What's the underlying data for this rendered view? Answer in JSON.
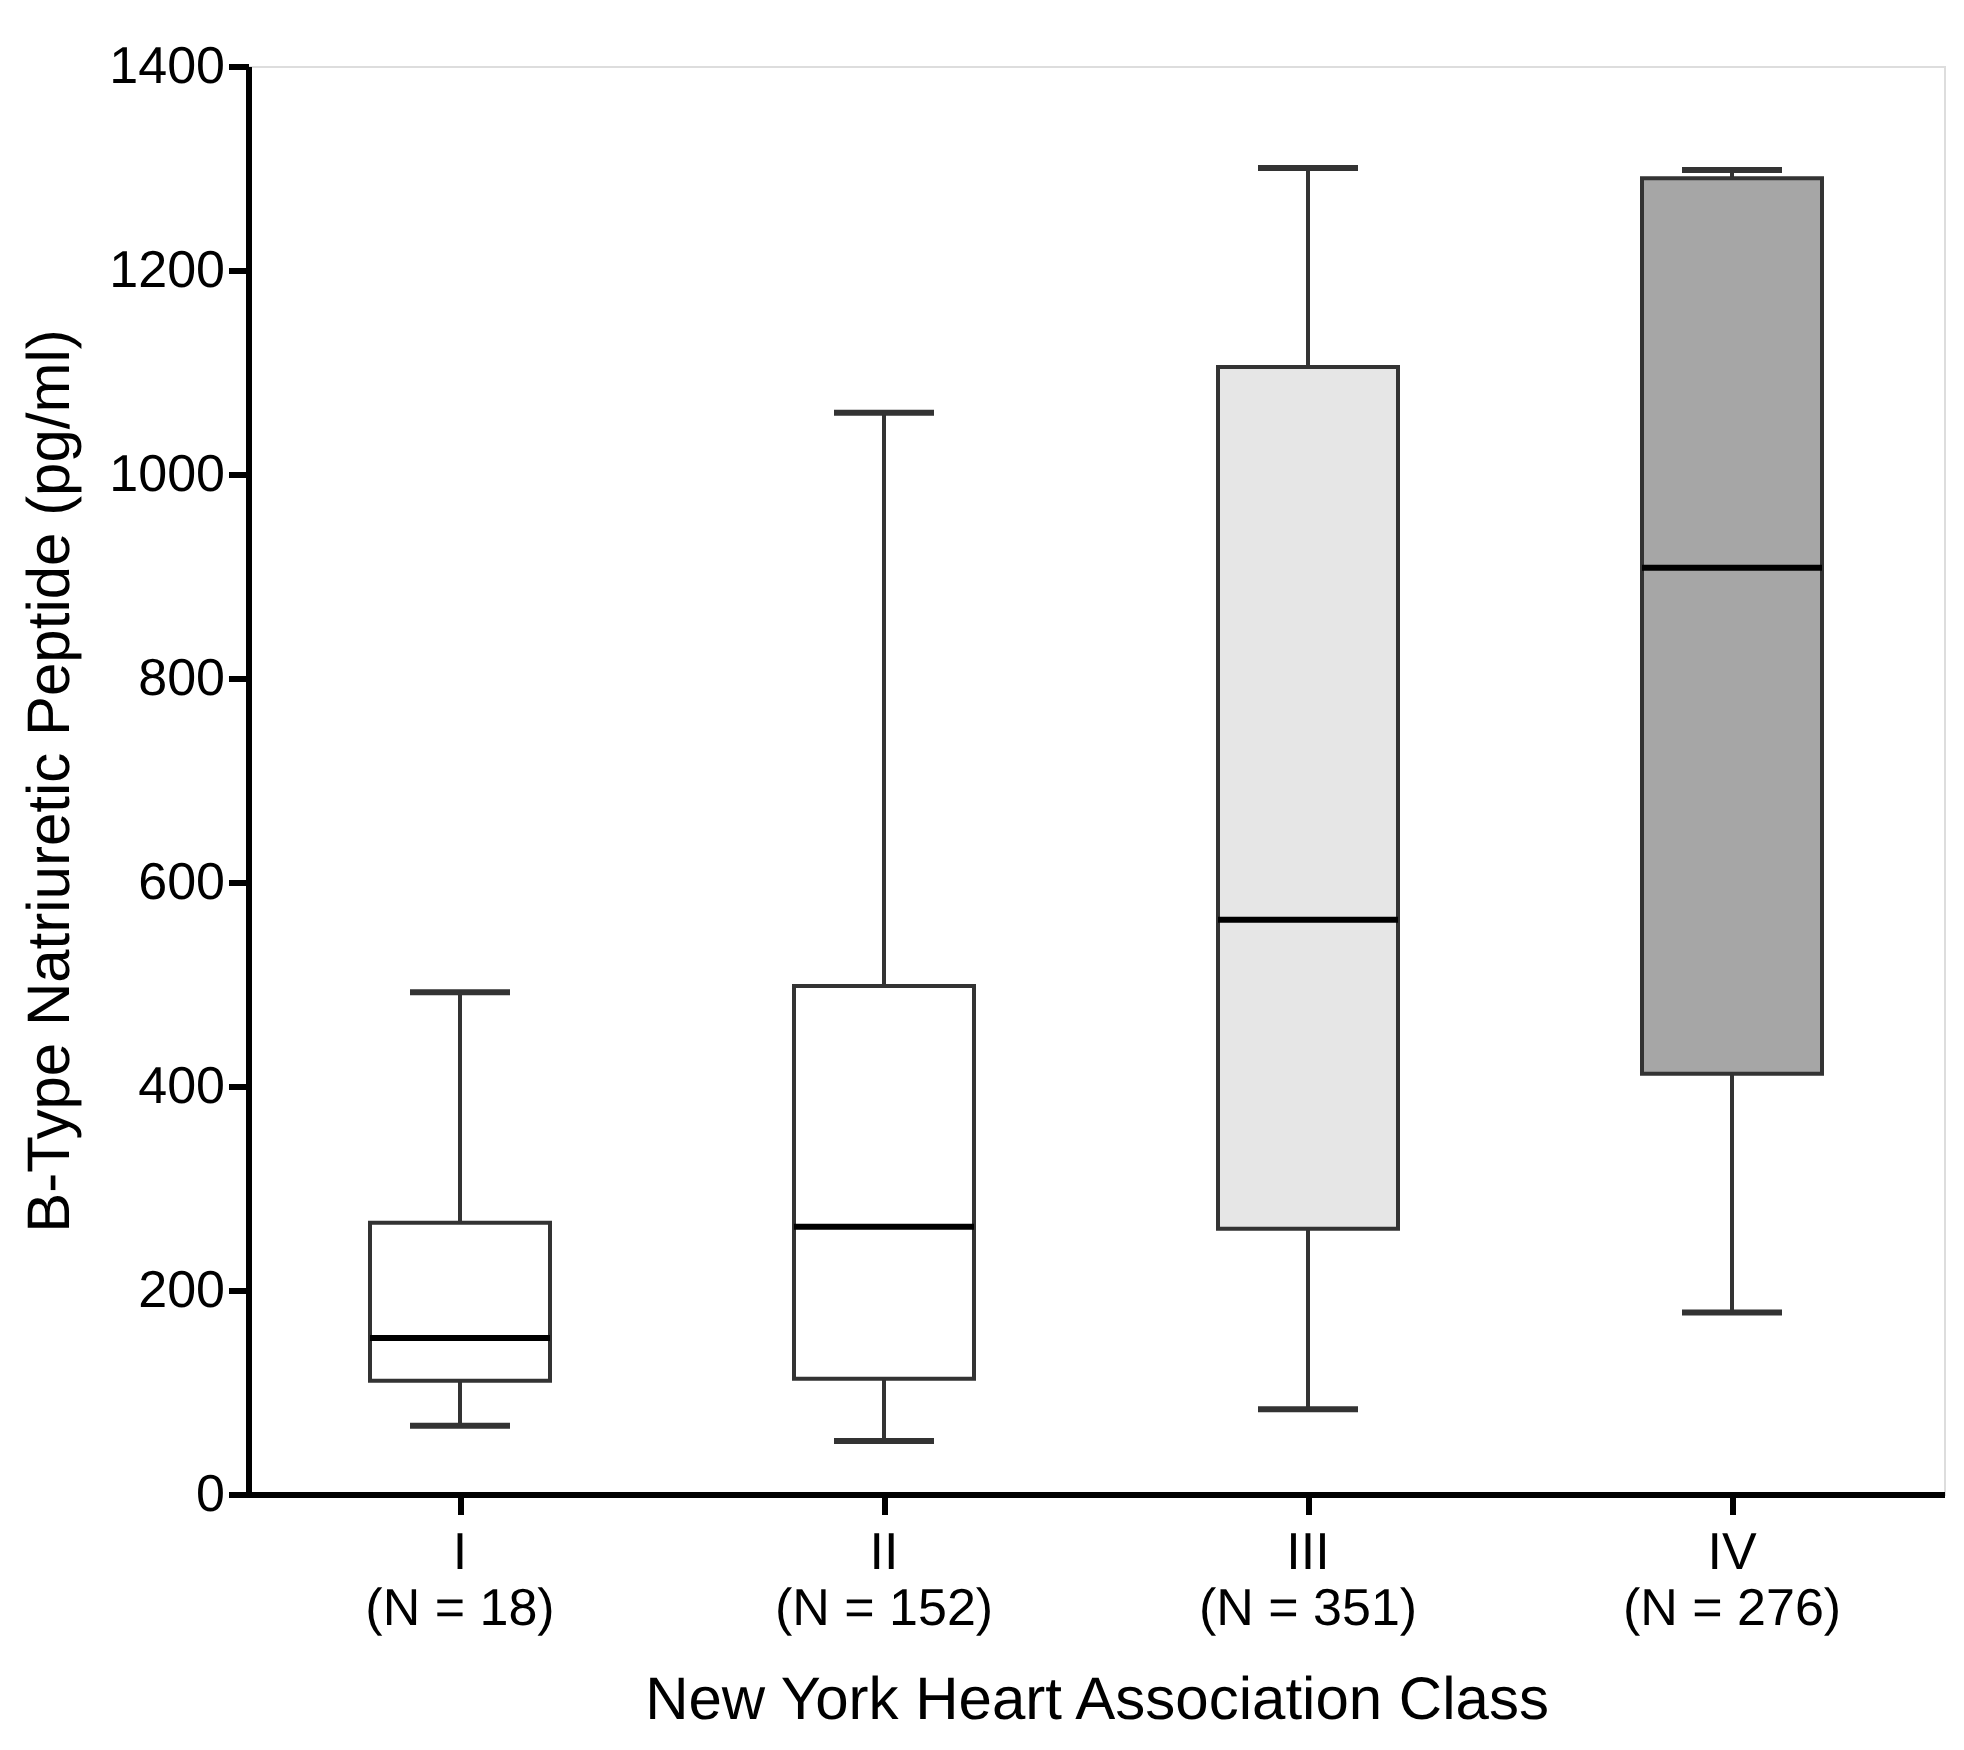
{
  "chart_data": {
    "type": "box",
    "xlabel": "New York Heart Association Class",
    "ylabel": "B-Type Natriuretic Peptide (pg/ml)",
    "categories": [
      "I\n(N = 18)",
      "II\n(N = 152)",
      "III\n(N = 351)",
      "IV\n(N = 276)"
    ],
    "boxes": [
      {
        "low": 67,
        "q1": 111,
        "median": 153,
        "q3": 266,
        "high": 492
      },
      {
        "low": 52,
        "q1": 113,
        "median": 262,
        "q3": 498,
        "high": 1060
      },
      {
        "low": 83,
        "q1": 260,
        "median": 563,
        "q3": 1105,
        "high": 1300
      },
      {
        "low": 178,
        "q1": 412,
        "median": 908,
        "q3": 1290,
        "high": 1298
      }
    ],
    "colors": [
      "#ffffff",
      "#ffffff",
      "#e6e6e6",
      "#a6a6a6"
    ],
    "ylim": [
      0,
      1400
    ],
    "yticks": [
      0,
      200,
      400,
      600,
      800,
      1000,
      1200,
      1400
    ],
    "grid": false
  }
}
